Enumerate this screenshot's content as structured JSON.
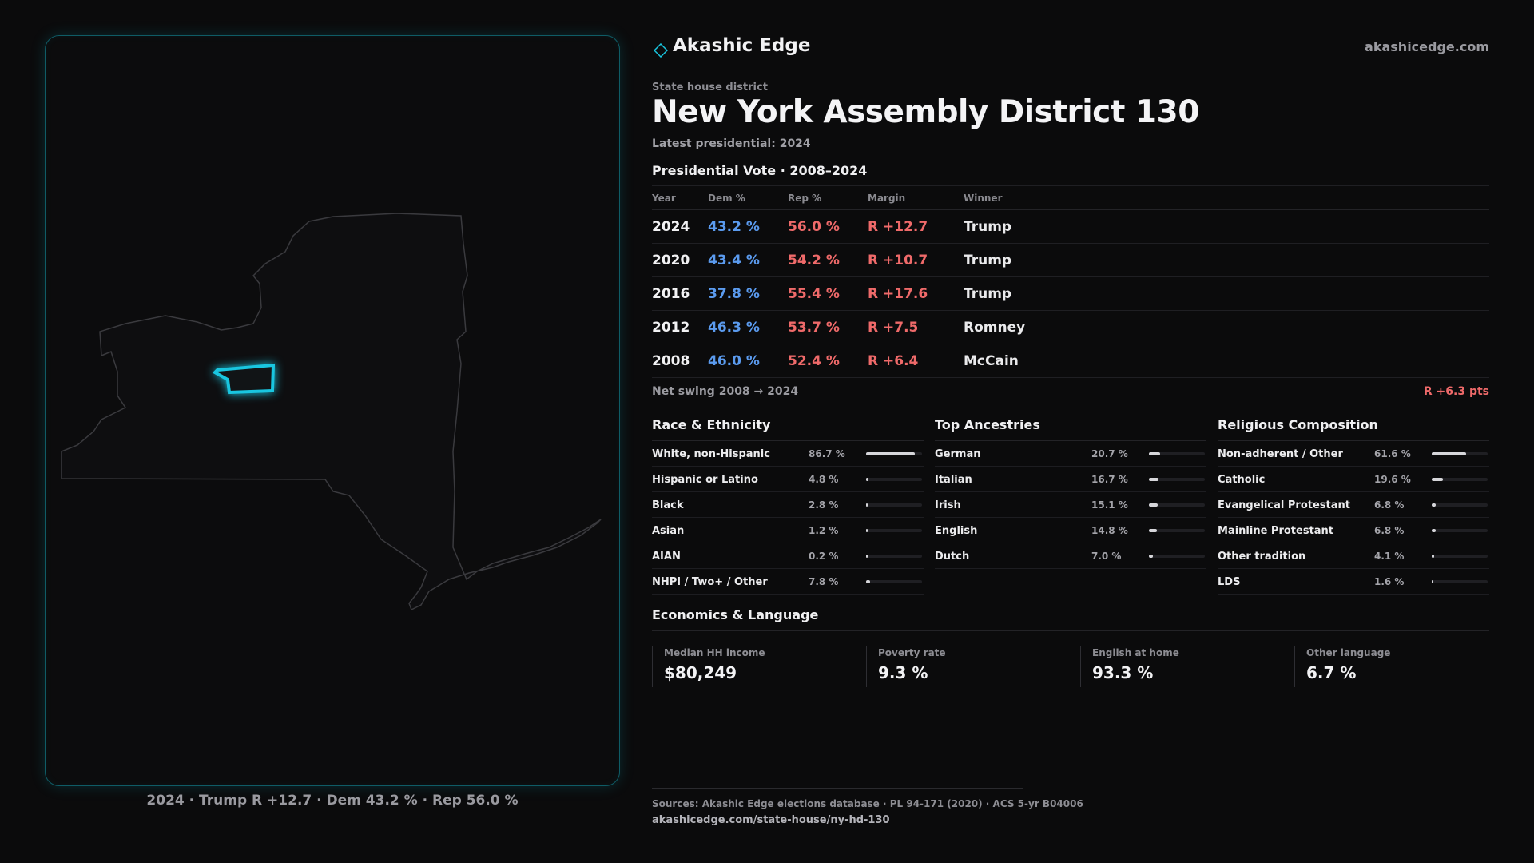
{
  "brand": {
    "name": "Akashic Edge",
    "url": "akashicedge.com"
  },
  "header": {
    "kicker": "State house district",
    "title": "New York  Assembly District 130",
    "subtitle": "Latest presidential: 2024"
  },
  "vote_section": {
    "title": "Presidential Vote · 2008–2024",
    "columns": [
      "Year",
      "Dem %",
      "Rep %",
      "Margin",
      "Winner"
    ],
    "rows": [
      {
        "year": "2024",
        "dem": "43.2 %",
        "rep": "56.0 %",
        "margin": "R +12.7",
        "winner": "Trump"
      },
      {
        "year": "2020",
        "dem": "43.4 %",
        "rep": "54.2 %",
        "margin": "R +10.7",
        "winner": "Trump"
      },
      {
        "year": "2016",
        "dem": "37.8 %",
        "rep": "55.4 %",
        "margin": "R +17.6",
        "winner": "Trump"
      },
      {
        "year": "2012",
        "dem": "46.3 %",
        "rep": "53.7 %",
        "margin": "R +7.5",
        "winner": "Romney"
      },
      {
        "year": "2008",
        "dem": "46.0 %",
        "rep": "52.4 %",
        "margin": "R +6.4",
        "winner": "McCain"
      }
    ],
    "swing_label": "Net swing 2008 → 2024",
    "swing_value": "R +6.3 pts"
  },
  "race": {
    "title": "Race & Ethnicity",
    "items": [
      {
        "label": "White, non-Hispanic",
        "pct": "86.7 %",
        "value": 0.867
      },
      {
        "label": "Hispanic or Latino",
        "pct": "4.8 %",
        "value": 0.048
      },
      {
        "label": "Black",
        "pct": "2.8 %",
        "value": 0.028
      },
      {
        "label": "Asian",
        "pct": "1.2 %",
        "value": 0.012
      },
      {
        "label": "AIAN",
        "pct": "0.2 %",
        "value": 0.002
      },
      {
        "label": "NHPI / Two+ / Other",
        "pct": "7.8 %",
        "value": 0.078
      }
    ]
  },
  "ancestry": {
    "title": "Top Ancestries",
    "items": [
      {
        "label": "German",
        "pct": "20.7 %",
        "value": 0.207
      },
      {
        "label": "Italian",
        "pct": "16.7 %",
        "value": 0.167
      },
      {
        "label": "Irish",
        "pct": "15.1 %",
        "value": 0.151
      },
      {
        "label": "English",
        "pct": "14.8 %",
        "value": 0.148
      },
      {
        "label": "Dutch",
        "pct": "7.0 %",
        "value": 0.07
      }
    ]
  },
  "religion": {
    "title": "Religious Composition",
    "items": [
      {
        "label": "Non-adherent / Other",
        "pct": "61.6 %",
        "value": 0.616
      },
      {
        "label": "Catholic",
        "pct": "19.6 %",
        "value": 0.196
      },
      {
        "label": "Evangelical Protestant",
        "pct": "6.8 %",
        "value": 0.068
      },
      {
        "label": "Mainline Protestant",
        "pct": "6.8 %",
        "value": 0.068
      },
      {
        "label": "Other tradition",
        "pct": "4.1 %",
        "value": 0.041
      },
      {
        "label": "LDS",
        "pct": "1.6 %",
        "value": 0.016
      }
    ]
  },
  "economics": {
    "title": "Economics & Language",
    "cards": [
      {
        "label": "Median HH income",
        "value": "$80,249"
      },
      {
        "label": "Poverty rate",
        "value": "9.3 %"
      },
      {
        "label": "English at home",
        "value": "93.3 %"
      },
      {
        "label": "Other language",
        "value": "6.7 %"
      }
    ]
  },
  "map": {
    "caption": "2024 · Trump R +12.7 · Dem 43.2 % · Rep 56.0 %",
    "highlight_color": "#19c6e0",
    "outline_color": "#3a3a3e"
  },
  "footer": {
    "sources": "Sources: Akashic Edge elections database · PL 94-171 (2020) · ACS 5-yr B04006",
    "link": "akashicedge.com/state-house/ny-hd-130"
  },
  "colors": {
    "dem": "#5b9bef",
    "rep": "#ef6a6a",
    "accent": "#19c6e0"
  }
}
